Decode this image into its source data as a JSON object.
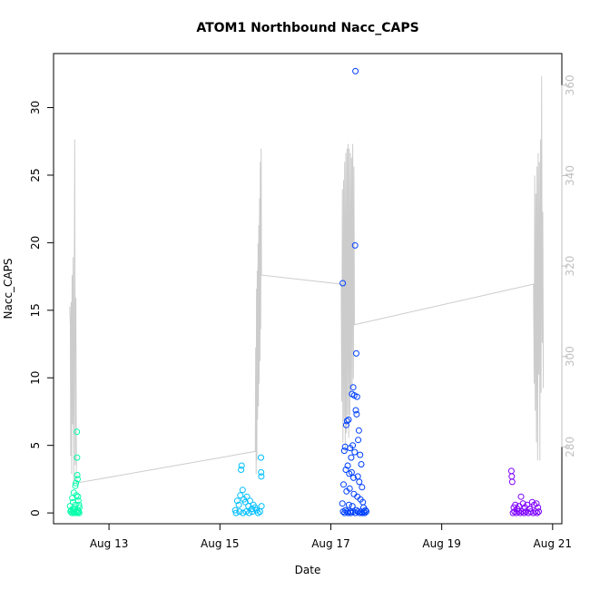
{
  "chart_data": {
    "type": "scatter",
    "title": "ATOM1 Northbound Nacc_CAPS",
    "xlabel": "Date",
    "ylabel": "Nacc_CAPS",
    "x_axis": {
      "type": "date",
      "range": [
        "2021-08-12T00:00",
        "2021-08-21T04:00"
      ],
      "ticks": [
        {
          "value": "2021-08-13T00:00",
          "label": "Aug 13"
        },
        {
          "value": "2021-08-15T00:00",
          "label": "Aug 15"
        },
        {
          "value": "2021-08-17T00:00",
          "label": "Aug 17"
        },
        {
          "value": "2021-08-19T00:00",
          "label": "Aug 19"
        },
        {
          "value": "2021-08-21T00:00",
          "label": "Aug 21"
        }
      ]
    },
    "y_left": {
      "range": [
        -0.8,
        34
      ],
      "ticks": [
        0,
        5,
        10,
        15,
        20,
        25,
        30
      ]
    },
    "y_right": {
      "range": [
        263,
        367
      ],
      "ticks": [
        280,
        300,
        320,
        340,
        360
      ],
      "tick_color": "#bfbfbf"
    },
    "line_color": "#cccccc",
    "scatter_groups": [
      {
        "color": "#00ffaa",
        "points": [
          [
            "2021-08-12T07:10",
            0.5
          ],
          [
            "2021-08-12T07:40",
            0.2
          ],
          [
            "2021-08-12T08:05",
            1.1
          ],
          [
            "2021-08-12T08:25",
            0.8
          ],
          [
            "2021-08-12T08:45",
            1.5
          ],
          [
            "2021-08-12T09:10",
            0.3
          ],
          [
            "2021-08-12T09:25",
            2.0
          ],
          [
            "2021-08-12T09:40",
            2.2
          ],
          [
            "2021-08-12T09:55",
            1.3
          ],
          [
            "2021-08-12T10:05",
            6.0
          ],
          [
            "2021-08-12T10:10",
            4.1
          ],
          [
            "2021-08-12T10:15",
            2.8
          ],
          [
            "2021-08-12T10:25",
            2.5
          ],
          [
            "2021-08-12T10:35",
            1.2
          ],
          [
            "2021-08-12T10:45",
            0.9
          ],
          [
            "2021-08-12T11:00",
            0.6
          ],
          [
            "2021-08-12T11:10",
            0.4
          ],
          [
            "2021-08-12T07:20",
            0.1
          ],
          [
            "2021-08-12T07:55",
            0.0
          ],
          [
            "2021-08-12T08:35",
            0.1
          ],
          [
            "2021-08-12T09:00",
            0.0
          ],
          [
            "2021-08-12T09:45",
            0.1
          ],
          [
            "2021-08-12T10:20",
            0.0
          ],
          [
            "2021-08-12T10:50",
            0.1
          ],
          [
            "2021-08-12T11:05",
            0.0
          ],
          [
            "2021-08-12T08:15",
            0.3
          ],
          [
            "2021-08-12T09:30",
            0.6
          ],
          [
            "2021-08-12T10:40",
            0.2
          ]
        ]
      },
      {
        "color": "#00bfff",
        "points": [
          [
            "2021-08-15T06:40",
            0.2
          ],
          [
            "2021-08-15T07:30",
            0.9
          ],
          [
            "2021-08-15T08:10",
            0.6
          ],
          [
            "2021-08-15T08:50",
            1.3
          ],
          [
            "2021-08-15T09:10",
            3.2
          ],
          [
            "2021-08-15T09:25",
            3.5
          ],
          [
            "2021-08-15T09:50",
            1.7
          ],
          [
            "2021-08-15T10:20",
            1.0
          ],
          [
            "2021-08-15T11:00",
            0.8
          ],
          [
            "2021-08-15T11:40",
            1.2
          ],
          [
            "2021-08-15T12:20",
            0.5
          ],
          [
            "2021-08-15T13:00",
            0.9
          ],
          [
            "2021-08-15T13:45",
            0.3
          ],
          [
            "2021-08-15T14:30",
            0.6
          ],
          [
            "2021-08-15T15:10",
            0.4
          ],
          [
            "2021-08-15T15:50",
            0.2
          ],
          [
            "2021-08-15T17:45",
            4.1
          ],
          [
            "2021-08-15T17:50",
            3.0
          ],
          [
            "2021-08-15T17:55",
            2.7
          ],
          [
            "2021-08-15T18:00",
            0.5
          ],
          [
            "2021-08-15T07:00",
            0.0
          ],
          [
            "2021-08-15T08:30",
            0.1
          ],
          [
            "2021-08-15T10:00",
            0.0
          ],
          [
            "2021-08-15T11:20",
            0.1
          ],
          [
            "2021-08-15T12:40",
            0.0
          ],
          [
            "2021-08-15T14:00",
            0.1
          ],
          [
            "2021-08-15T16:30",
            0.0
          ],
          [
            "2021-08-15T17:20",
            0.1
          ]
        ]
      },
      {
        "color": "#0040ff",
        "points": [
          [
            "2021-08-17T05:10",
            17.0
          ],
          [
            "2021-08-17T10:40",
            32.7
          ],
          [
            "2021-08-17T10:30",
            19.8
          ],
          [
            "2021-08-17T11:00",
            11.8
          ],
          [
            "2021-08-17T09:40",
            9.3
          ],
          [
            "2021-08-17T09:10",
            8.8
          ],
          [
            "2021-08-17T10:10",
            8.7
          ],
          [
            "2021-08-17T11:20",
            8.6
          ],
          [
            "2021-08-17T10:50",
            7.6
          ],
          [
            "2021-08-17T11:10",
            7.3
          ],
          [
            "2021-08-17T07:00",
            6.8
          ],
          [
            "2021-08-17T06:40",
            6.5
          ],
          [
            "2021-08-17T07:40",
            6.9
          ],
          [
            "2021-08-17T12:10",
            6.1
          ],
          [
            "2021-08-17T11:50",
            5.4
          ],
          [
            "2021-08-17T06:10",
            4.9
          ],
          [
            "2021-08-17T05:50",
            4.6
          ],
          [
            "2021-08-17T08:20",
            4.8
          ],
          [
            "2021-08-17T08:50",
            4.1
          ],
          [
            "2021-08-17T09:30",
            5.0
          ],
          [
            "2021-08-17T10:20",
            4.5
          ],
          [
            "2021-08-17T12:40",
            4.3
          ],
          [
            "2021-08-17T13:10",
            3.6
          ],
          [
            "2021-08-17T06:30",
            3.2
          ],
          [
            "2021-08-17T07:20",
            3.5
          ],
          [
            "2021-08-17T08:00",
            2.9
          ],
          [
            "2021-08-17T09:00",
            3.0
          ],
          [
            "2021-08-17T09:50",
            2.6
          ],
          [
            "2021-08-17T11:40",
            2.7
          ],
          [
            "2021-08-17T12:20",
            2.3
          ],
          [
            "2021-08-17T13:30",
            1.9
          ],
          [
            "2021-08-17T05:30",
            2.1
          ],
          [
            "2021-08-17T06:50",
            1.6
          ],
          [
            "2021-08-17T08:10",
            1.8
          ],
          [
            "2021-08-17T10:00",
            1.4
          ],
          [
            "2021-08-17T11:30",
            1.2
          ],
          [
            "2021-08-17T12:50",
            1.0
          ],
          [
            "2021-08-17T13:50",
            0.8
          ],
          [
            "2021-08-17T05:00",
            0.7
          ],
          [
            "2021-08-17T07:50",
            0.6
          ],
          [
            "2021-08-17T09:20",
            0.5
          ],
          [
            "2021-08-17T14:10",
            0.4
          ],
          [
            "2021-08-17T05:20",
            0.1
          ],
          [
            "2021-08-17T06:00",
            0.0
          ],
          [
            "2021-08-17T06:20",
            0.2
          ],
          [
            "2021-08-17T07:10",
            0.1
          ],
          [
            "2021-08-17T07:30",
            0.0
          ],
          [
            "2021-08-17T08:30",
            0.1
          ],
          [
            "2021-08-17T08:40",
            0.0
          ],
          [
            "2021-08-17T09:40",
            0.1
          ],
          [
            "2021-08-17T10:35",
            0.0
          ],
          [
            "2021-08-17T11:05",
            0.2
          ],
          [
            "2021-08-17T11:45",
            0.1
          ],
          [
            "2021-08-17T12:30",
            0.0
          ],
          [
            "2021-08-17T13:00",
            0.1
          ],
          [
            "2021-08-17T13:40",
            0.0
          ],
          [
            "2021-08-17T14:20",
            0.1
          ],
          [
            "2021-08-17T14:40",
            0.0
          ],
          [
            "2021-08-17T15:00",
            0.2
          ],
          [
            "2021-08-17T15:20",
            0.1
          ]
        ]
      },
      {
        "color": "#7f00ff",
        "points": [
          [
            "2021-08-20T06:10",
            3.1
          ],
          [
            "2021-08-20T06:20",
            2.7
          ],
          [
            "2021-08-20T06:30",
            2.3
          ],
          [
            "2021-08-20T07:10",
            0.4
          ],
          [
            "2021-08-20T07:50",
            0.6
          ],
          [
            "2021-08-20T08:40",
            0.3
          ],
          [
            "2021-08-20T09:30",
            0.5
          ],
          [
            "2021-08-20T10:20",
            1.2
          ],
          [
            "2021-08-20T11:10",
            0.7
          ],
          [
            "2021-08-20T12:00",
            0.4
          ],
          [
            "2021-08-20T13:00",
            0.6
          ],
          [
            "2021-08-20T14:00",
            0.3
          ],
          [
            "2021-08-20T15:10",
            0.8
          ],
          [
            "2021-08-20T16:00",
            0.6
          ],
          [
            "2021-08-20T17:00",
            0.7
          ],
          [
            "2021-08-20T17:40",
            0.4
          ],
          [
            "2021-08-20T06:50",
            0.0
          ],
          [
            "2021-08-20T07:30",
            0.1
          ],
          [
            "2021-08-20T08:20",
            0.0
          ],
          [
            "2021-08-20T09:10",
            0.1
          ],
          [
            "2021-08-20T10:00",
            0.0
          ],
          [
            "2021-08-20T10:50",
            0.1
          ],
          [
            "2021-08-20T11:40",
            0.0
          ],
          [
            "2021-08-20T12:30",
            0.1
          ],
          [
            "2021-08-20T13:30",
            0.0
          ],
          [
            "2021-08-20T14:30",
            0.1
          ],
          [
            "2021-08-20T15:40",
            0.0
          ],
          [
            "2021-08-20T16:30",
            0.1
          ],
          [
            "2021-08-20T17:20",
            0.0
          ],
          [
            "2021-08-20T18:00",
            0.1
          ]
        ]
      }
    ],
    "line_segments": [
      {
        "points": [
          [
            "2021-08-12T07:00",
            311
          ],
          [
            "2021-08-12T07:15",
            307
          ],
          [
            "2021-08-12T07:25",
            278
          ],
          [
            "2021-08-12T07:35",
            312
          ],
          [
            "2021-08-12T07:50",
            274
          ],
          [
            "2021-08-12T08:00",
            318
          ],
          [
            "2021-08-12T08:15",
            285
          ],
          [
            "2021-08-12T08:30",
            322
          ],
          [
            "2021-08-12T08:45",
            272
          ],
          [
            "2021-08-12T09:00",
            312
          ],
          [
            "2021-08-12T09:10",
            348
          ],
          [
            "2021-08-12T09:25",
            276
          ],
          [
            "2021-08-12T09:40",
            313
          ],
          [
            "2021-08-12T09:55",
            272
          ]
        ]
      },
      {
        "points": [
          [
            "2021-08-15T15:20",
            279
          ],
          [
            "2021-08-15T15:30",
            302
          ],
          [
            "2021-08-15T15:40",
            274
          ],
          [
            "2021-08-15T15:50",
            315
          ],
          [
            "2021-08-15T16:00",
            277
          ],
          [
            "2021-08-15T16:10",
            319
          ],
          [
            "2021-08-15T16:20",
            286
          ],
          [
            "2021-08-15T16:30",
            325
          ],
          [
            "2021-08-15T16:40",
            289
          ],
          [
            "2021-08-15T16:50",
            329
          ],
          [
            "2021-08-15T17:00",
            294
          ],
          [
            "2021-08-15T17:10",
            335
          ],
          [
            "2021-08-15T17:20",
            299
          ],
          [
            "2021-08-15T17:30",
            343
          ],
          [
            "2021-08-15T17:40",
            306
          ],
          [
            "2021-08-15T17:50",
            346
          ],
          [
            "2021-08-15T18:00",
            318
          ]
        ]
      },
      {
        "points": [
          [
            "2021-08-17T04:30",
            316
          ],
          [
            "2021-08-17T04:45",
            290
          ],
          [
            "2021-08-17T05:00",
            337
          ],
          [
            "2021-08-17T05:15",
            281
          ],
          [
            "2021-08-17T05:30",
            339
          ],
          [
            "2021-08-17T05:45",
            286
          ],
          [
            "2021-08-17T06:00",
            343
          ],
          [
            "2021-08-17T06:15",
            279
          ],
          [
            "2021-08-17T06:30",
            345
          ],
          [
            "2021-08-17T06:45",
            283
          ],
          [
            "2021-08-17T07:00",
            346
          ],
          [
            "2021-08-17T07:15",
            287
          ],
          [
            "2021-08-17T07:30",
            347
          ],
          [
            "2021-08-17T07:45",
            282
          ],
          [
            "2021-08-17T08:00",
            346
          ],
          [
            "2021-08-17T08:15",
            287
          ],
          [
            "2021-08-17T08:30",
            345
          ],
          [
            "2021-08-17T08:45",
            292
          ],
          [
            "2021-08-17T09:00",
            344
          ],
          [
            "2021-08-17T09:15",
            293
          ],
          [
            "2021-08-17T09:30",
            347
          ],
          [
            "2021-08-17T09:45",
            295
          ],
          [
            "2021-08-17T10:00",
            342
          ],
          [
            "2021-08-17T10:15",
            307
          ]
        ]
      },
      {
        "points": [
          [
            "2021-08-20T15:45",
            316
          ],
          [
            "2021-08-20T16:00",
            294
          ],
          [
            "2021-08-20T16:15",
            340
          ],
          [
            "2021-08-20T16:30",
            288
          ],
          [
            "2021-08-20T16:45",
            336
          ],
          [
            "2021-08-20T17:00",
            281
          ],
          [
            "2021-08-20T17:15",
            342
          ],
          [
            "2021-08-20T17:30",
            277
          ],
          [
            "2021-08-20T17:45",
            345
          ],
          [
            "2021-08-20T18:00",
            296
          ],
          [
            "2021-08-20T18:15",
            343
          ],
          [
            "2021-08-20T18:30",
            277
          ],
          [
            "2021-08-20T18:45",
            348
          ],
          [
            "2021-08-20T19:00",
            292
          ],
          [
            "2021-08-20T19:15",
            362
          ],
          [
            "2021-08-20T19:30",
            303
          ],
          [
            "2021-08-20T19:45",
            332
          ],
          [
            "2021-08-20T20:00",
            293
          ]
        ]
      }
    ],
    "grid": false,
    "legend": "none"
  }
}
